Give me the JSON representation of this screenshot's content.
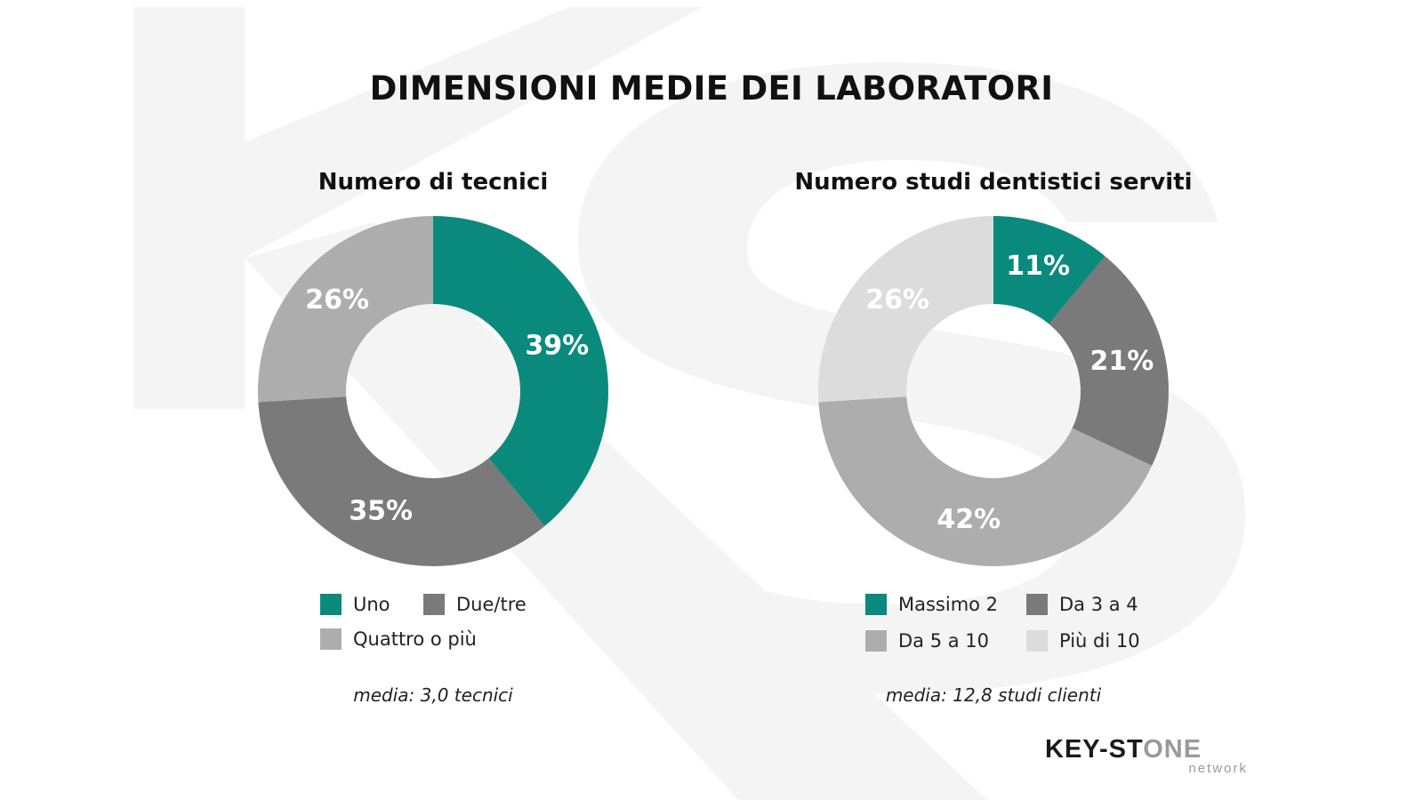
{
  "page_title": "DIMENSIONI MEDIE DEI LABORATORI",
  "colors": {
    "teal": "#0a8a7c",
    "dark_gray": "#7b7a7b",
    "mid_gray": "#aeadae",
    "light_gray": "#dcdcdc",
    "watermark": "#f4f4f4"
  },
  "chart_data": [
    {
      "type": "pie",
      "title": "Numero di tecnici",
      "categories": [
        "Uno",
        "Due/tre",
        "Quattro o più"
      ],
      "values": [
        39,
        35,
        26
      ],
      "labels": [
        "39%",
        "35%",
        "26%"
      ],
      "colors": [
        "#0a8a7c",
        "#7b7a7b",
        "#aeadae"
      ],
      "donut": true,
      "legend_position": "bottom",
      "note": "media: 3,0 tecnici"
    },
    {
      "type": "pie",
      "title": "Numero studi dentistici serviti",
      "categories": [
        "Massimo 2",
        "Da 3 a 4",
        "Da 5 a 10",
        "Più di 10"
      ],
      "values": [
        11,
        21,
        42,
        26
      ],
      "labels": [
        "11%",
        "21%",
        "42%",
        "26%"
      ],
      "colors": [
        "#0a8a7c",
        "#7b7a7b",
        "#aeadae",
        "#dcdcdc"
      ],
      "donut": true,
      "legend_position": "bottom",
      "note": "media: 12,8 studi clienti"
    }
  ],
  "logo": {
    "main_dark": "KEY-ST",
    "main_light": "ONE",
    "sub": "network"
  }
}
